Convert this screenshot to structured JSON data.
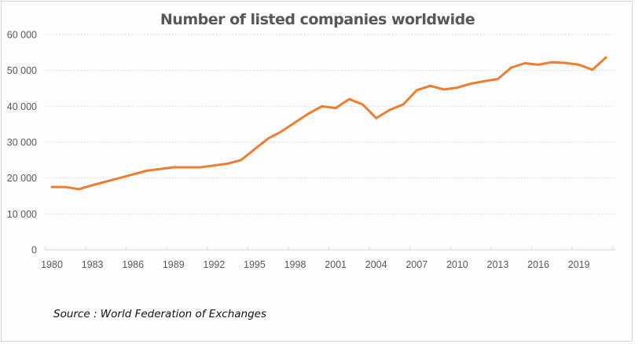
{
  "chart_data": {
    "type": "line",
    "title": "Number of listed companies worldwide",
    "xlabel": "",
    "ylabel": "",
    "ylim": [
      0,
      60000
    ],
    "yticks": [
      0,
      10000,
      20000,
      30000,
      40000,
      50000,
      60000
    ],
    "ytick_labels": [
      "0",
      "10 000",
      "20 000",
      "30 000",
      "40 000",
      "50 000",
      "60 000"
    ],
    "xtick_labels": [
      "1980",
      "1983",
      "1986",
      "1989",
      "1992",
      "1995",
      "1998",
      "2001",
      "2004",
      "2007",
      "2010",
      "2013",
      "2016",
      "2019"
    ],
    "grid": true,
    "legend": "none",
    "series": [
      {
        "name": "Listed companies",
        "color": "#ed7d31",
        "x": [
          1980,
          1981,
          1982,
          1983,
          1984,
          1985,
          1986,
          1987,
          1988,
          1989,
          1990,
          1991,
          1992,
          1993,
          1994,
          1995,
          1996,
          1997,
          1998,
          1999,
          2000,
          2001,
          2002,
          2003,
          2004,
          2005,
          2006,
          2007,
          2008,
          2009,
          2010,
          2011,
          2012,
          2013,
          2014,
          2015,
          2016,
          2017,
          2018,
          2019,
          2020,
          2021
        ],
        "values": [
          17500,
          17500,
          16900,
          18000,
          19000,
          20000,
          21000,
          22000,
          22500,
          23000,
          23000,
          23000,
          23500,
          24000,
          25000,
          28000,
          31000,
          33000,
          35500,
          38000,
          40000,
          39500,
          42000,
          40500,
          36700,
          39000,
          40500,
          44500,
          45700,
          44700,
          45200,
          46300,
          47000,
          47600,
          50800,
          52000,
          51600,
          52300,
          52100,
          51600,
          50200,
          53600
        ]
      }
    ],
    "annotations": [
      "Source : World Federation of Exchanges"
    ]
  },
  "colors": {
    "line": "#ed7d31",
    "grid": "#d9d9d9",
    "axis": "#d9d9d9",
    "text": "#595959"
  }
}
